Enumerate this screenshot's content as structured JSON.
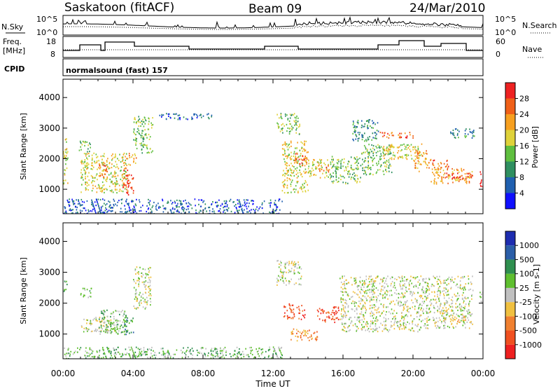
{
  "header": {
    "station": "Saskatoon (fitACF)",
    "beam": "Beam 09",
    "date": "24/Mar/2010"
  },
  "strips": {
    "nsky_label": "N.Sky",
    "nsearch_label": "N.Search",
    "freq_label_line1": "Freq.",
    "freq_label_line2": "[MHz]",
    "nave_label": "Nave",
    "cpid_label": "CPID",
    "cpid_value": "normalsound (fast) 157",
    "noise_left_ticks": [
      "10^5",
      "10^0"
    ],
    "noise_right_ticks": [
      "10^5",
      "10^0"
    ],
    "freq_ticks": [
      "18",
      "8"
    ],
    "nave_ticks": [
      "60",
      "0"
    ]
  },
  "chart_data": [
    {
      "type": "heatmap",
      "name": "power",
      "ylabel": "Slant Range [km]",
      "xlabel": "Time UT",
      "x_ticks": [
        "00:00",
        "04:00",
        "08:00",
        "12:00",
        "16:00",
        "20:00",
        "00:00"
      ],
      "xlim_hours": [
        0,
        24
      ],
      "y_ticks": [
        1000,
        2000,
        3000,
        4000
      ],
      "ylim": [
        200,
        4600
      ],
      "colorbar": {
        "label": "Power [dB]",
        "ticks": [
          "4",
          "8",
          "12",
          "16",
          "20",
          "24",
          "28"
        ],
        "colors": [
          "#1010ff",
          "#2060b0",
          "#2f8f60",
          "#5fbf3f",
          "#dfd23a",
          "#f7a020",
          "#f06018",
          "#ee2222"
        ]
      },
      "regions": [
        {
          "t0": 0.0,
          "t1": 0.25,
          "r0": 1100,
          "r1": 2800,
          "level": 4
        },
        {
          "t0": 0.9,
          "t1": 1.6,
          "r0": 2200,
          "r1": 2600,
          "level": 3
        },
        {
          "t0": 1.0,
          "t1": 3.6,
          "r0": 900,
          "r1": 2200,
          "level": 4
        },
        {
          "t0": 2.0,
          "t1": 2.6,
          "r0": 1400,
          "r1": 1900,
          "level": 6
        },
        {
          "t0": 3.4,
          "t1": 3.75,
          "r0": 900,
          "r1": 1800,
          "level": 6
        },
        {
          "t0": 3.6,
          "t1": 4.0,
          "r0": 800,
          "r1": 1500,
          "level": 7
        },
        {
          "t0": 3.6,
          "t1": 4.2,
          "r0": 1800,
          "r1": 2200,
          "level": 5
        },
        {
          "t0": 4.0,
          "t1": 5.1,
          "r0": 2200,
          "r1": 3400,
          "level": 3
        },
        {
          "t0": 5.5,
          "t1": 8.5,
          "r0": 3300,
          "r1": 3500,
          "level": 1
        },
        {
          "t0": 0.0,
          "t1": 12.5,
          "r0": 200,
          "r1": 700,
          "level": 1
        },
        {
          "t0": 12.2,
          "t1": 13.5,
          "r0": 2800,
          "r1": 3500,
          "level": 3
        },
        {
          "t0": 12.5,
          "t1": 14.0,
          "r0": 900,
          "r1": 2600,
          "level": 4
        },
        {
          "t0": 13.2,
          "t1": 14.0,
          "r0": 1800,
          "r1": 2200,
          "level": 6
        },
        {
          "t0": 14.0,
          "t1": 15.2,
          "r0": 1400,
          "r1": 2000,
          "level": 4
        },
        {
          "t0": 14.6,
          "t1": 15.2,
          "r0": 1550,
          "r1": 1800,
          "level": 6
        },
        {
          "t0": 15.2,
          "t1": 17.0,
          "r0": 1200,
          "r1": 2100,
          "level": 3
        },
        {
          "t0": 16.5,
          "t1": 18.0,
          "r0": 2600,
          "r1": 3300,
          "level": 2
        },
        {
          "t0": 17.0,
          "t1": 18.8,
          "r0": 1500,
          "r1": 2500,
          "level": 3
        },
        {
          "t0": 18.0,
          "t1": 20.0,
          "r0": 2700,
          "r1": 2900,
          "level": 6
        },
        {
          "t0": 18.2,
          "t1": 20.5,
          "r0": 2000,
          "r1": 2500,
          "level": 4
        },
        {
          "t0": 20.0,
          "t1": 20.8,
          "r0": 1600,
          "r1": 2300,
          "level": 5
        },
        {
          "t0": 20.8,
          "t1": 22.0,
          "r0": 1700,
          "r1": 2000,
          "level": 6
        },
        {
          "t0": 21.0,
          "t1": 23.4,
          "r0": 1200,
          "r1": 1700,
          "level": 5
        },
        {
          "t0": 21.8,
          "t1": 23.4,
          "r0": 1350,
          "r1": 1550,
          "level": 7
        },
        {
          "t0": 22.0,
          "t1": 23.5,
          "r0": 2700,
          "r1": 3000,
          "level": 2
        },
        {
          "t0": 23.8,
          "t1": 24.0,
          "r0": 900,
          "r1": 1600,
          "level": 7
        }
      ]
    },
    {
      "type": "heatmap",
      "name": "velocity",
      "ylabel": "Slant Range [km]",
      "xlabel": "Time UT",
      "x_ticks": [
        "00:00",
        "04:00",
        "08:00",
        "12:00",
        "16:00",
        "20:00",
        "00:00"
      ],
      "xlim_hours": [
        0,
        24
      ],
      "y_ticks": [
        1000,
        2000,
        3000,
        4000
      ],
      "ylim": [
        200,
        4600
      ],
      "colorbar": {
        "label": "Velocity [m s-1]",
        "ticks": [
          "1000",
          "500",
          "100",
          "25",
          "-25",
          "-100",
          "-500",
          "-1000"
        ],
        "colors": [
          "#1e2db0",
          "#2b5ea8",
          "#2f8f4f",
          "#5fbf2f",
          "#c0c0c0",
          "#f0c040",
          "#f08030",
          "#f05020",
          "#ee2020"
        ]
      },
      "regions": [
        {
          "t0": 0.0,
          "t1": 0.25,
          "r0": 2400,
          "r1": 2800,
          "level": 3
        },
        {
          "t0": 0.9,
          "t1": 1.6,
          "r0": 2200,
          "r1": 2500,
          "level": 3
        },
        {
          "t0": 1.0,
          "t1": 3.0,
          "r0": 1100,
          "r1": 1600,
          "level": 4
        },
        {
          "t0": 2.0,
          "t1": 3.6,
          "r0": 1000,
          "r1": 1800,
          "level": 3
        },
        {
          "t0": 3.4,
          "t1": 4.0,
          "r0": 1000,
          "r1": 1600,
          "level": 2
        },
        {
          "t0": 4.0,
          "t1": 5.0,
          "r0": 1800,
          "r1": 3200,
          "level": 4
        },
        {
          "t0": 0.0,
          "t1": 12.5,
          "r0": 200,
          "r1": 600,
          "level": 3
        },
        {
          "t0": 12.2,
          "t1": 13.6,
          "r0": 2600,
          "r1": 3400,
          "level": 4
        },
        {
          "t0": 12.6,
          "t1": 13.8,
          "r0": 1500,
          "r1": 2000,
          "level": 7
        },
        {
          "t0": 13.0,
          "t1": 14.6,
          "r0": 800,
          "r1": 1200,
          "level": 6
        },
        {
          "t0": 14.5,
          "t1": 15.8,
          "r0": 1400,
          "r1": 1900,
          "level": 7
        },
        {
          "t0": 15.8,
          "t1": 20.5,
          "r0": 1100,
          "r1": 2900,
          "level": 4
        },
        {
          "t0": 20.5,
          "t1": 23.4,
          "r0": 1200,
          "r1": 2900,
          "level": 4
        },
        {
          "t0": 22.0,
          "t1": 23.0,
          "r0": 1400,
          "r1": 1600,
          "level": 5
        },
        {
          "t0": 23.8,
          "t1": 24.0,
          "r0": 2000,
          "r1": 2400,
          "level": 4
        }
      ]
    }
  ]
}
